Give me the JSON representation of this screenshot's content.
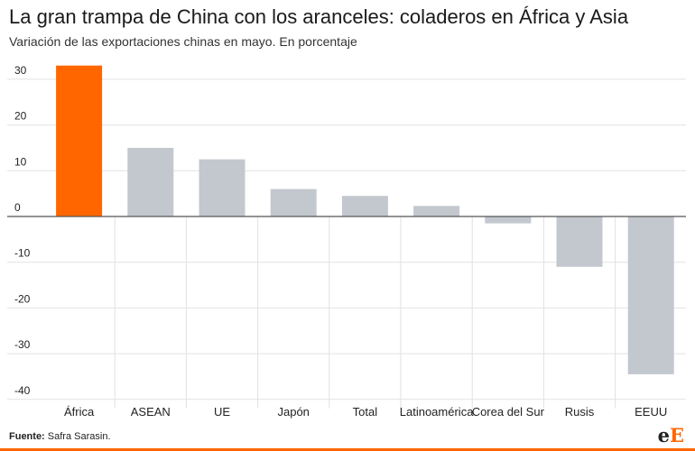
{
  "header": {
    "title": "La gran trampa de China con los aranceles: coladeros en África y Asia",
    "subtitle": "Variación de las exportaciones chinas en mayo. En porcentaje"
  },
  "footer": {
    "source_label": "Fuente:",
    "source_text": "Safra Sarasin."
  },
  "logo": {
    "letter_1": "e",
    "letter_2": "E"
  },
  "colors": {
    "highlight": "#ff6600",
    "bar": "#c3c8cf",
    "grid": "#e2e2e2",
    "axis": "#555555"
  },
  "chart_data": {
    "type": "bar",
    "title": "",
    "xlabel": "",
    "ylabel": "",
    "categories": [
      "África",
      "ASEAN",
      "UE",
      "Japón",
      "Total",
      "Latinoamérica",
      "Corea del Sur",
      "Rusis",
      "EEUU"
    ],
    "values": [
      33,
      15,
      12.5,
      6,
      4.5,
      2.3,
      -1.5,
      -11,
      -34.5
    ],
    "highlight_index": 0,
    "ylim": [
      -40,
      33
    ],
    "yticks": [
      30,
      20,
      10,
      0,
      -10,
      -20,
      -30,
      -40
    ],
    "grid": true
  }
}
